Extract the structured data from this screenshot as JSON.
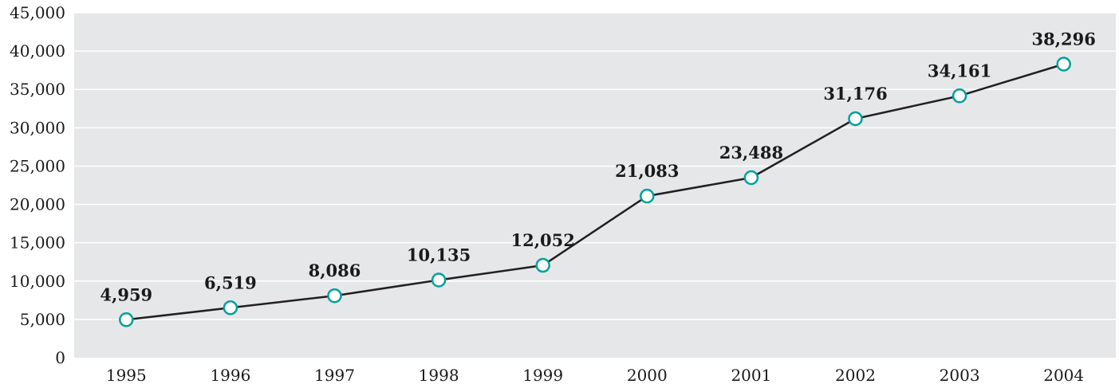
{
  "chart_data": {
    "type": "line",
    "categories": [
      "1995",
      "1996",
      "1997",
      "1998",
      "1999",
      "2000",
      "2001",
      "2002",
      "2003",
      "2004"
    ],
    "series": [
      {
        "values": [
          4959,
          6519,
          8086,
          10135,
          12052,
          21083,
          23488,
          31176,
          34161,
          38296
        ],
        "labels": [
          "4,959",
          "6,519",
          "8,086",
          "10,135",
          "12,052",
          "21,083",
          "23,488",
          "31,176",
          "34,161",
          "38,296"
        ]
      }
    ],
    "ylim": [
      0,
      45000
    ],
    "yticks": [
      0,
      5000,
      10000,
      15000,
      20000,
      25000,
      30000,
      35000,
      40000,
      45000
    ],
    "ytick_labels": [
      "0",
      "5,000",
      "10,000",
      "15,000",
      "20,000",
      "25,000",
      "30,000",
      "35,000",
      "40,000",
      "45,000"
    ],
    "grid": true,
    "colors": {
      "plot_background": "#e6e7e8",
      "gridline": "#ffffff",
      "line": "#231f20",
      "marker_stroke": "#00a19a",
      "marker_fill": "#ffffff"
    }
  }
}
